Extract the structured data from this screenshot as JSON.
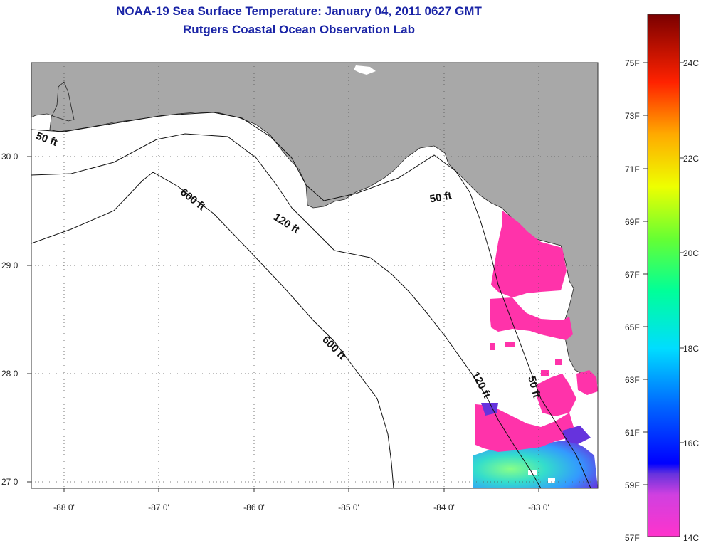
{
  "title": "NOAA-19 Sea Surface Temperature:  January 04, 2011 0627 GMT",
  "subtitle": "Rutgers Coastal Ocean Observation Lab",
  "colors": {
    "land": "#a8a8a8",
    "ocean": "#ffffff",
    "title": "#1a24a6",
    "sst_warm_patch": "#ff33aa"
  },
  "lat_labels": [
    "30 0'",
    "29 0'",
    "28 0'",
    "27 0'"
  ],
  "lon_labels": [
    "-88 0'",
    "-87 0'",
    "-86 0'",
    "-85 0'",
    "-84 0'",
    "-83 0'"
  ],
  "contours": {
    "fifty_west": "50 ft",
    "fifty_east": "50 ft",
    "fifty_south": "50 ft",
    "onetwenty_mid": "120 ft",
    "onetwenty_south": "120 ft",
    "sixhundred_north": "600 ft",
    "sixhundred_mid": "600 ft"
  },
  "colorbar": {
    "f_labels": [
      "75F",
      "73F",
      "71F",
      "69F",
      "67F",
      "65F",
      "63F",
      "61F",
      "59F",
      "57F"
    ],
    "c_labels": [
      "24C",
      "22C",
      "20C",
      "18C",
      "16C",
      "14C"
    ]
  }
}
